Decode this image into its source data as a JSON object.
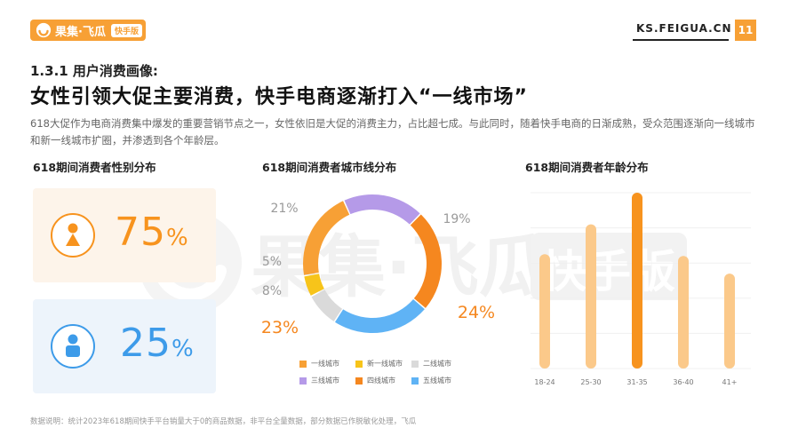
{
  "header": {
    "brand_name": "果集·飞瓜",
    "brand_badge": "快手版",
    "site_url": "KS.FEIGUA.CN",
    "page_number": "11",
    "brand_color": "#f7a035"
  },
  "section_title": "1.3.1 用户消费画像:",
  "main_title": "女性引领大促主要消费，快手电商逐渐打入“一线市场”",
  "description": "618大促作为电商消费集中爆发的重要营销节点之一，女性依旧是大促的消费主力，占比超七成。与此同时，随着快手电商的日渐成熟，受众范围逐渐向一线城市和新一线城市扩圈，并渗透到各个年龄层。",
  "watermark": {
    "text": "果集·飞瓜",
    "badge": "快手版"
  },
  "gender_panel": {
    "title": "618期间消费者性别分布",
    "female": {
      "value": "75",
      "unit": "%",
      "icon": "female-icon",
      "color": "#f7931e"
    },
    "male": {
      "value": "25",
      "unit": "%",
      "icon": "male-icon",
      "color": "#3d9be9"
    }
  },
  "city_panel": {
    "title": "618期间消费者城市线分布"
  },
  "age_panel": {
    "title": "618期间消费者年龄分布"
  },
  "footnote": "数据说明：统计2023年618期间快手平台销量大于0的商品数据，非平台全量数据，部分数据已作脱敏化处理，飞瓜",
  "chart_data": [
    {
      "type": "pie",
      "title": "618期间消费者城市线分布",
      "donut": true,
      "slices": [
        {
          "label": "一线城市",
          "value": 21,
          "display": "21%",
          "color": "#f7a035"
        },
        {
          "label": "新一线城市",
          "value": 19,
          "display": "19%",
          "color": "#b59ae8"
        },
        {
          "label": "二线城市",
          "value": 24,
          "display": "24%",
          "color": "#f5871f"
        },
        {
          "label": "三线城市",
          "value": 23,
          "display": "23%",
          "color": "#5fb3f5"
        },
        {
          "label": "四线城市",
          "value": 8,
          "display": "8%",
          "color": "#dadada"
        },
        {
          "label": "五线城市",
          "value": 5,
          "display": "5%",
          "color": "#f7c41a"
        }
      ],
      "legend": [
        {
          "label": "一线城市",
          "color": "#f7a035"
        },
        {
          "label": "新一线城市",
          "color": "#f7c41a"
        },
        {
          "label": "二线城市",
          "color": "#dadada"
        },
        {
          "label": "三线城市",
          "color": "#b59ae8"
        },
        {
          "label": "四线城市",
          "color": "#f5871f"
        },
        {
          "label": "五线城市",
          "color": "#5fb3f5"
        }
      ],
      "legend_placement": "bottom"
    },
    {
      "type": "bar",
      "title": "618期间消费者年龄分布",
      "categories": [
        "18-24",
        "25-30",
        "31-35",
        "36-40",
        "41+"
      ],
      "values": [
        0.65,
        0.82,
        1.0,
        0.64,
        0.54
      ],
      "highlight_index": 2,
      "bar_color": "#fbc98a",
      "highlight_color": "#f7931e",
      "ylim": [
        0,
        1
      ],
      "grid": true
    }
  ]
}
